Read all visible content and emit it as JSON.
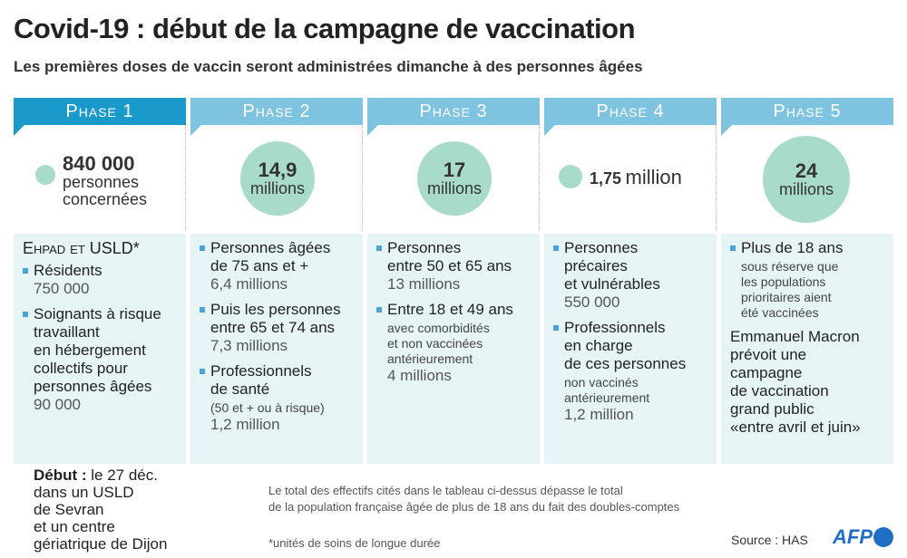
{
  "title": "Covid-19 : début de la campagne de vaccination",
  "subtitle": "Les premières doses de vaccin seront administrées dimanche à des personnes âgées",
  "colors": {
    "phase_active": "#1a9acb",
    "phase": "#7ec3e0",
    "circle": "#a8dcc8",
    "panel": "#e6f4f6",
    "bullet": "#4aa3d6"
  },
  "phases": [
    {
      "label": "Phase 1",
      "number": "840 000",
      "unit": "personnes\nconcernées",
      "blocks": [
        {
          "type": "heading",
          "text": "Ehpad et USLD*"
        },
        {
          "type": "bullet",
          "text": "Résidents",
          "value": "750 000"
        },
        {
          "type": "bullet",
          "text": "Soignants à risque\ntravaillant\nen hébergement\ncollectifs pour\npersonnes âgées",
          "value": "90 000"
        }
      ]
    },
    {
      "label": "Phase 2",
      "number": "14,9",
      "unit": "millions",
      "blocks": [
        {
          "type": "bullet",
          "text": "Personnes âgées\nde 75 ans et +",
          "value": "6,4 millions"
        },
        {
          "type": "bullet",
          "text": "Puis les personnes\nentre 65 et 74 ans",
          "value": "7,3 millions"
        },
        {
          "type": "bullet",
          "text": "Professionnels\nde santé",
          "note": "(50 et + ou à risque)",
          "value": "1,2 million"
        }
      ]
    },
    {
      "label": "Phase 3",
      "number": "17",
      "unit": "millions",
      "blocks": [
        {
          "type": "bullet",
          "text": "Personnes\nentre 50 et 65 ans",
          "value": "13 millions"
        },
        {
          "type": "bullet",
          "text": "Entre 18 et 49 ans",
          "note": "avec comorbidités\net non vaccinées\nantérieurement",
          "value": "4 millions"
        }
      ]
    },
    {
      "label": "Phase 4",
      "number": "1,75",
      "unit": "million",
      "blocks": [
        {
          "type": "bullet",
          "text": "Personnes\nprécaires\net vulnérables",
          "value": "550 000"
        },
        {
          "type": "bullet",
          "text": "Professionnels\nen charge\nde ces personnes",
          "note": "non vaccinés\nantérieurement",
          "value": "1,2 million"
        }
      ]
    },
    {
      "label": "Phase 5",
      "number": "24",
      "unit": "millions",
      "blocks": [
        {
          "type": "bullet",
          "text": "Plus de 18 ans",
          "note": "sous réserve que\nles populations\nprioritaires aient\nété vaccinées"
        },
        {
          "type": "paragraph",
          "text": "Emmanuel Macron\nprévoit une\ncampagne\nde vaccination\ngrand public\n«entre avril et juin»"
        }
      ]
    }
  ],
  "start": {
    "label": "Début :",
    "text": " le 27 déc.\ndans un USLD\nde Sevran\net un centre\ngériatrique de Dijon"
  },
  "note": "Le total des effectifs cités dans le tableau ci-dessus dépasse le total\nde la population française âgée de plus de 18 ans du fait des doubles-comptes",
  "footnote": "*unités de soins de longue durée",
  "source": "Source : HAS",
  "logo": "AFP"
}
